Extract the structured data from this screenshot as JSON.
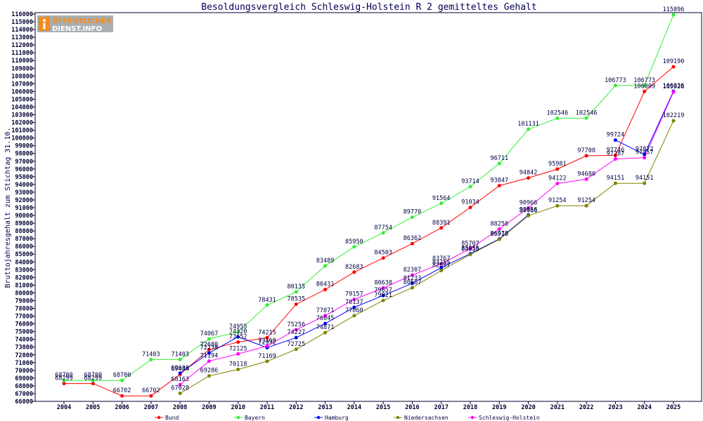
{
  "logo": {
    "line1": "ÖFFENTLICHER",
    "line2": "DIENST.INFO",
    "accent_color": "#f08c1e"
  },
  "chart_data": {
    "type": "line",
    "title": "Besoldungsvergleich Schleswig-Holstein R 2 gemitteltes Gehalt",
    "ylabel": "Bruttojahresgehalt zum Stichtag 31.10.",
    "ylim": [
      66000,
      116000
    ],
    "grid": false,
    "legend": "bottom",
    "categories": [
      "2004",
      "2005",
      "2006",
      "2007",
      "2008",
      "2009",
      "2010",
      "2011",
      "2012",
      "2013",
      "2014",
      "2015",
      "2016",
      "2017",
      "2018",
      "2019",
      "2020",
      "2021",
      "2022",
      "2023",
      "2024",
      "2025"
    ],
    "y_tick_labels": [
      "66000",
      "67000",
      "68000",
      "69000",
      "70000",
      "71000",
      "72000",
      "73000",
      "74000",
      "75000",
      "76000",
      "77000",
      "78000",
      "79000",
      "80000",
      "81000",
      "82000",
      "83000",
      "84000",
      "85000",
      "86000",
      "87000",
      "88000",
      "89000",
      "90000",
      "91000",
      "92000",
      "93000",
      "94000",
      "95000",
      "96000",
      "97000",
      "98000",
      "99000",
      "100000",
      "101000",
      "102000",
      "103000",
      "104000",
      "105000",
      "106000",
      "107000",
      "108000",
      "109000",
      "110000",
      "111000",
      "112000",
      "113000",
      "114000",
      "115000",
      "116000"
    ],
    "series": [
      {
        "name": "Bund",
        "color": "#ff0000",
        "values": [
          68299,
          68299,
          66702,
          66702,
          69484,
          72680,
          73652,
          74215,
          78535,
          80431,
          82683,
          84503,
          86362,
          88391,
          91034,
          93847,
          94842,
          95981,
          97708,
          97746,
          106009,
          109190
        ]
      },
      {
        "name": "Bayern",
        "color": "#33ee33",
        "values": [
          68700,
          68700,
          68700,
          71403,
          71403,
          74067,
          74955,
          78431,
          80135,
          83489,
          85950,
          87754,
          89770,
          91564,
          93714,
          96711,
          101131,
          102546,
          102546,
          106773,
          106773,
          115896
        ]
      },
      {
        "name": "Hamburg",
        "color": "#0000ff",
        "values": [
          null,
          null,
          null,
          null,
          69636,
          72238,
          74320,
          72932,
          74227,
          76045,
          78137,
          79657,
          81233,
          83255,
          85056,
          86970,
          90056,
          null,
          null,
          99724,
          97872,
          106026
        ]
      },
      {
        "name": "Niedersachsen",
        "color": "#808000",
        "values": [
          null,
          null,
          null,
          null,
          67028,
          69286,
          70118,
          71169,
          72725,
          74871,
          77060,
          79021,
          80667,
          82887,
          84955,
          86910,
          89966,
          91254,
          91254,
          94151,
          94151,
          102219
        ]
      },
      {
        "name": "Schleswig-Holstein",
        "color": "#ff00ff",
        "values": [
          null,
          null,
          null,
          null,
          68163,
          71194,
          72125,
          73160,
          75256,
          77071,
          79157,
          80638,
          82307,
          83767,
          85707,
          88250,
          90966,
          94122,
          94680,
          97287,
          97457,
          105936
        ]
      }
    ]
  }
}
